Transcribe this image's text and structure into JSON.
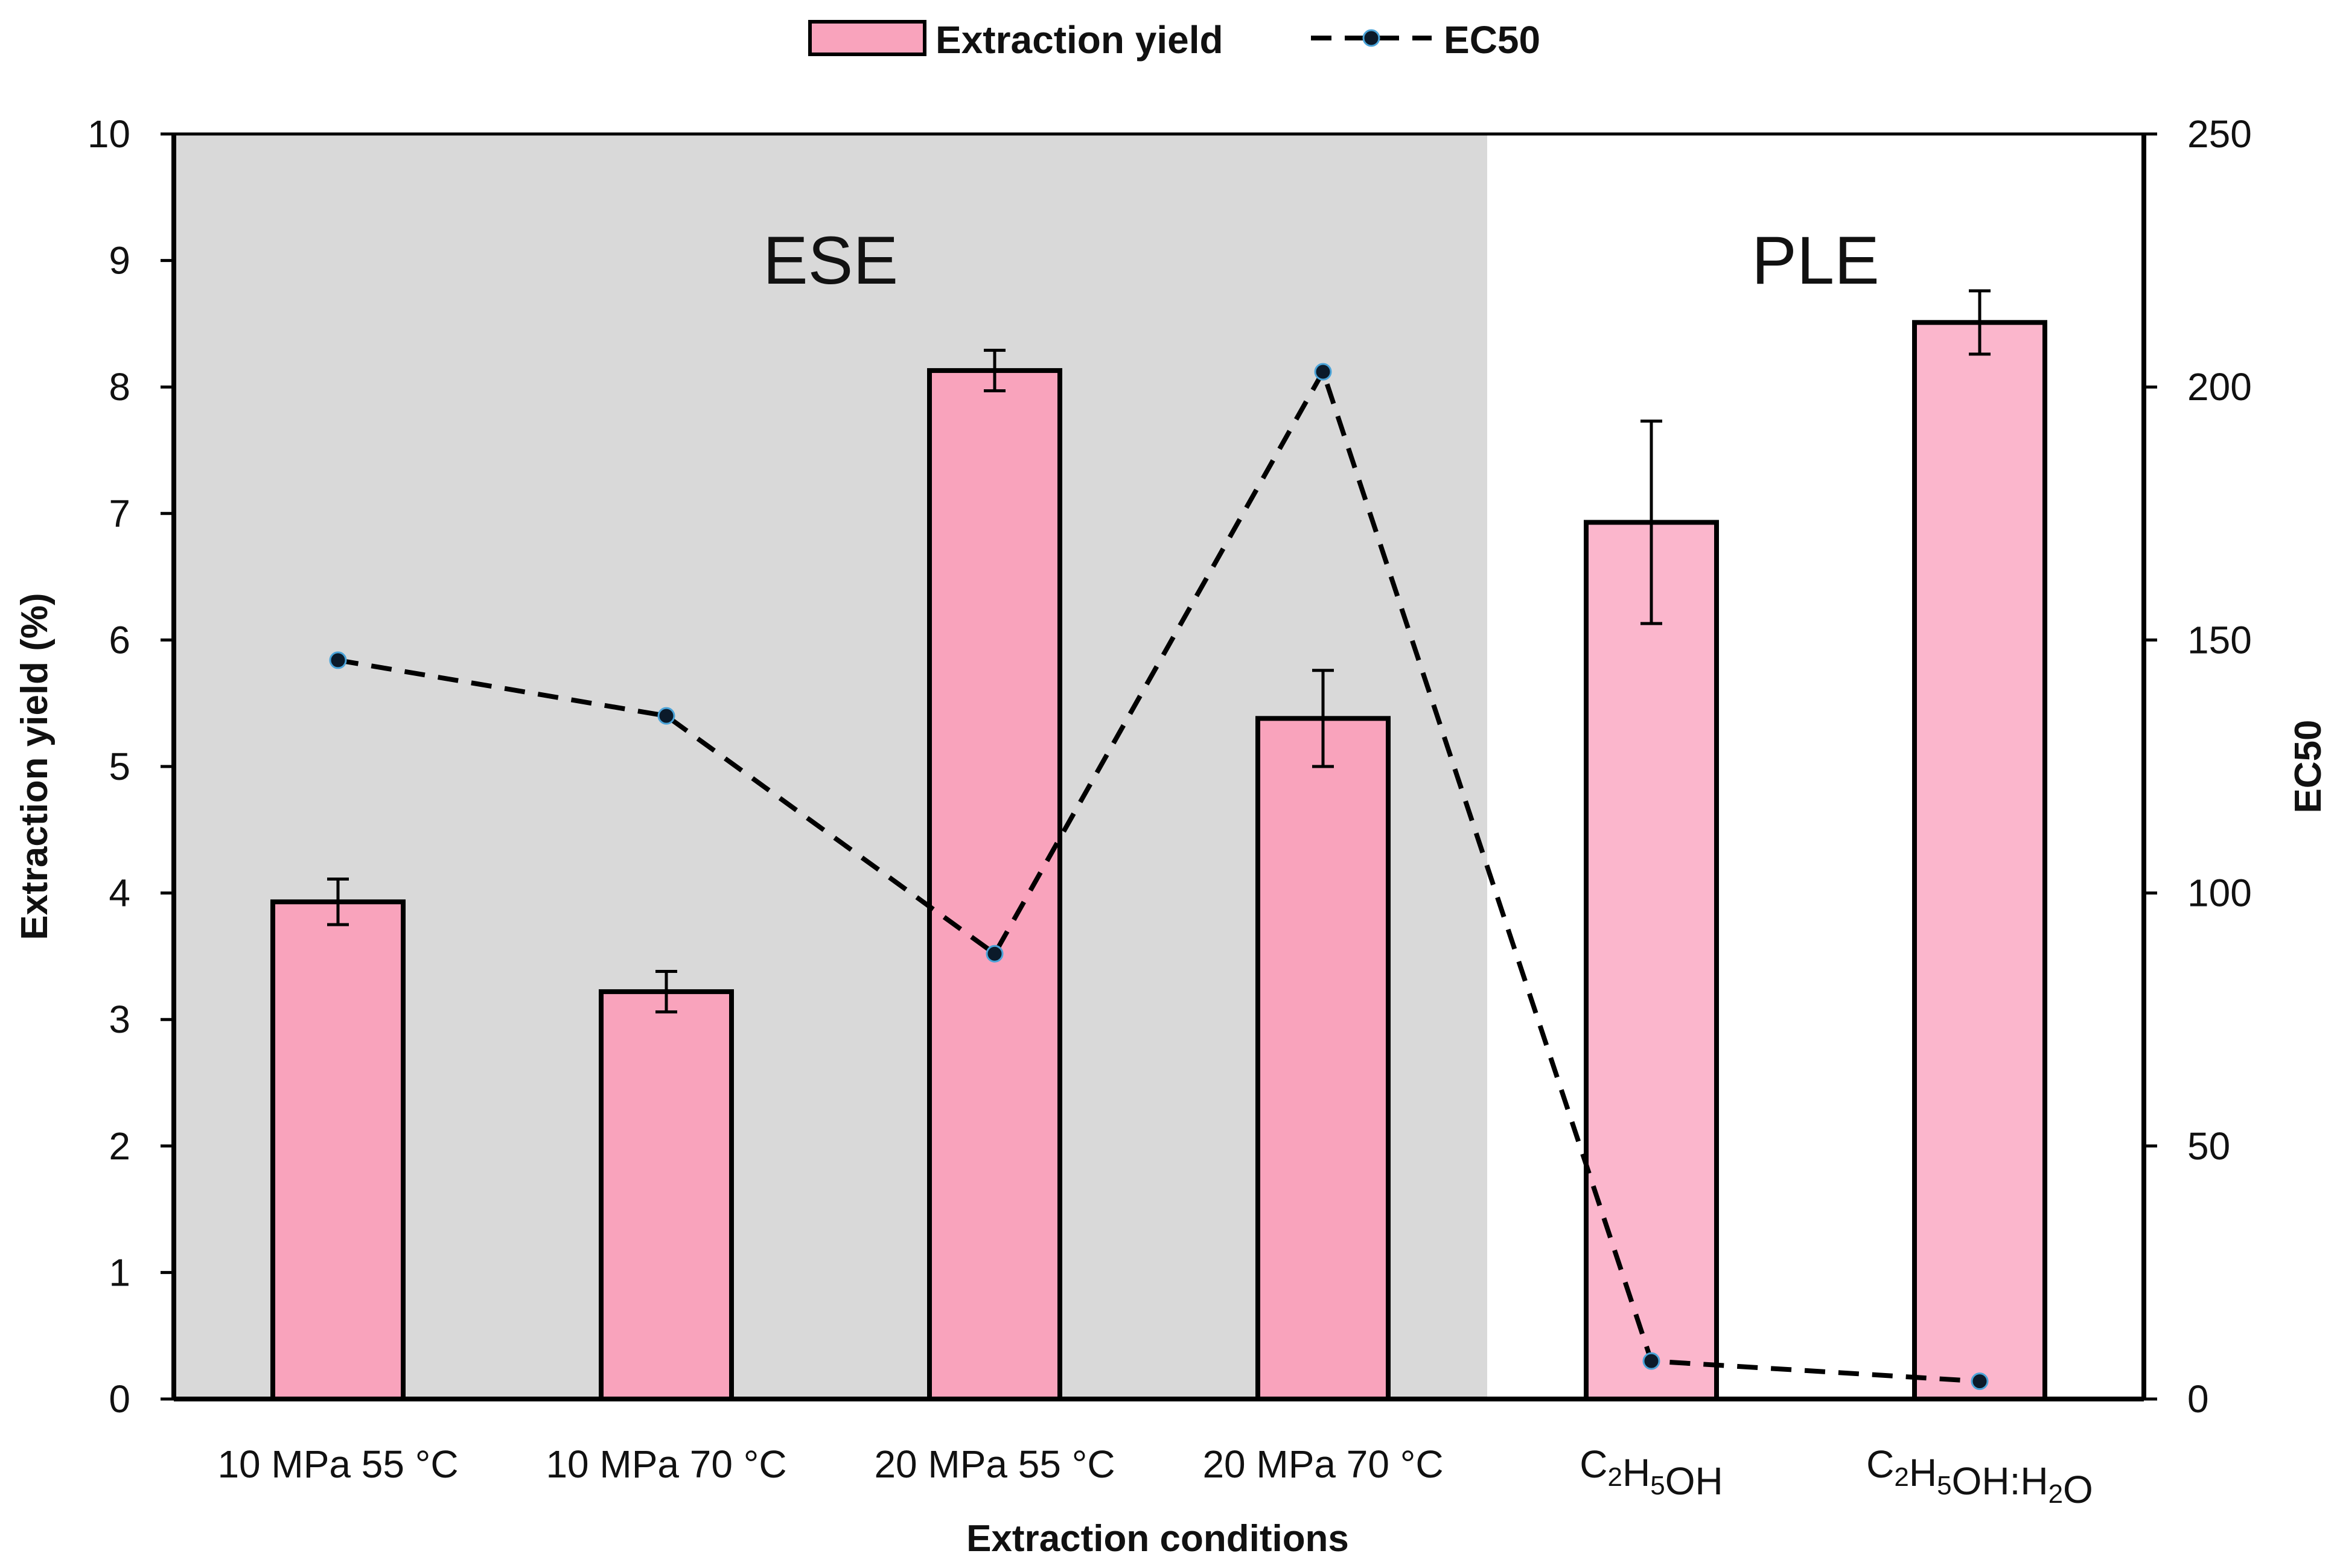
{
  "chart_data": {
    "type": "bar",
    "title": "",
    "categories": [
      {
        "main": "10 MPa 55 °C"
      },
      {
        "main": "10 MPa 70 °C"
      },
      {
        "main": "20 MPa 55 °C"
      },
      {
        "main": "20 MPa 70 °C"
      },
      {
        "parts": [
          [
            "C",
            false
          ],
          [
            "2",
            true
          ],
          [
            "H",
            false
          ],
          [
            "5",
            true
          ],
          [
            "OH",
            false
          ]
        ]
      },
      {
        "parts": [
          [
            "C",
            false
          ],
          [
            "2",
            true
          ],
          [
            "H",
            false
          ],
          [
            "5",
            true
          ],
          [
            "OH:H",
            false
          ],
          [
            "2",
            true
          ],
          [
            "O",
            false
          ]
        ]
      }
    ],
    "series": [
      {
        "name": "Extraction yield",
        "type": "bar",
        "axis": "left",
        "values": [
          3.93,
          3.22,
          8.13,
          5.38,
          6.93,
          8.51
        ],
        "errors": [
          0.18,
          0.16,
          0.16,
          0.38,
          0.8,
          0.25
        ],
        "colors": [
          "#f9a3bc",
          "#f9a3bc",
          "#f9a3bc",
          "#f9a3bc",
          "#fbb6cc",
          "#fbb6cc"
        ]
      },
      {
        "name": "EC50",
        "type": "line",
        "axis": "right",
        "line_style": "dashed",
        "values": [
          146,
          135,
          88,
          203,
          7.5,
          3.5
        ]
      }
    ],
    "xlabel": "Extraction conditions",
    "ylabel": "Extraction yield (%)",
    "y2label": "EC50",
    "ylim": [
      0,
      10
    ],
    "y2lim": [
      0,
      250
    ],
    "yticks": [
      0,
      1,
      2,
      3,
      4,
      5,
      6,
      7,
      8,
      9,
      10
    ],
    "y2ticks": [
      0,
      50,
      100,
      150,
      200,
      250
    ],
    "regions": [
      {
        "label": "ESE",
        "start_category": 0,
        "end_category": 3,
        "shade": "#d9d9d9"
      },
      {
        "label": "PLE",
        "start_category": 4,
        "end_category": 5,
        "shade": "#ffffff"
      }
    ],
    "legend": {
      "position": "top-center",
      "entries": [
        "Extraction yield",
        "EC50"
      ]
    },
    "grid": false
  }
}
